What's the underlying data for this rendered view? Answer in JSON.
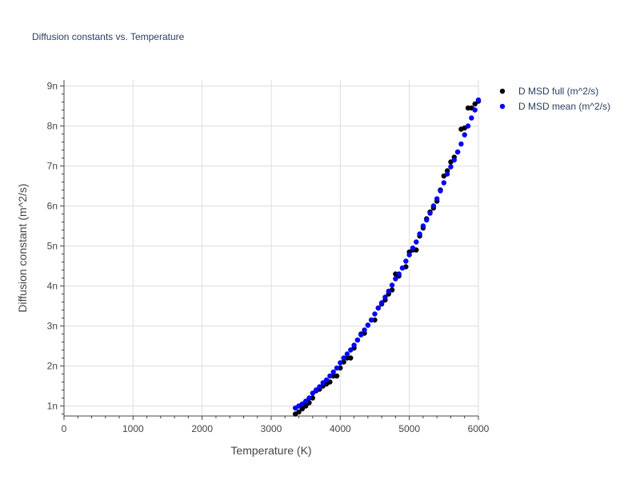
{
  "chart_data": {
    "type": "scatter",
    "title": "Diffusion constants vs. Temperature",
    "xlabel": "Temperature (K)",
    "ylabel": "Diffusion constant (m^2/s)",
    "xlim": [
      0,
      6000
    ],
    "ylim": [
      7.5e-10,
      9.15e-09
    ],
    "x_ticks": [
      0,
      1000,
      2000,
      3000,
      4000,
      5000,
      6000
    ],
    "x_tick_labels": [
      "0",
      "1000",
      "2000",
      "3000",
      "4000",
      "5000",
      "6000"
    ],
    "y_ticks": [
      1e-09,
      2e-09,
      3e-09,
      4e-09,
      5e-09,
      6e-09,
      7e-09,
      8e-09,
      9e-09
    ],
    "y_tick_labels": [
      "1n",
      "2n",
      "3n",
      "4n",
      "5n",
      "6n",
      "7n",
      "8n",
      "9n"
    ],
    "grid": true,
    "legend_position": "top-right",
    "series": [
      {
        "name": "D MSD full (m^2/s)",
        "color": "#000000",
        "x": [
          3350,
          3400,
          3450,
          3500,
          3550,
          3600,
          3650,
          3700,
          3750,
          3800,
          3850,
          3900,
          3950,
          4000,
          4050,
          4100,
          4150,
          4200,
          4250,
          4300,
          4350,
          4400,
          4450,
          4500,
          4550,
          4600,
          4650,
          4700,
          4750,
          4800,
          4850,
          4900,
          4950,
          5000,
          5050,
          5100,
          5150,
          5200,
          5250,
          5300,
          5350,
          5400,
          5450,
          5500,
          5550,
          5600,
          5650,
          5700,
          5750,
          5800,
          5850,
          5900,
          5950,
          6000
        ],
        "y": [
          8e-10,
          8.5e-10,
          9.3e-10,
          1e-09,
          1.08e-09,
          1.2e-09,
          1.38e-09,
          1.42e-09,
          1.5e-09,
          1.55e-09,
          1.6e-09,
          1.75e-09,
          1.75e-09,
          1.95e-09,
          2.1e-09,
          2.2e-09,
          2.2e-09,
          2.45e-09,
          2.65e-09,
          2.8e-09,
          2.82e-09,
          3.02e-09,
          3.15e-09,
          3.15e-09,
          3.45e-09,
          3.55e-09,
          3.65e-09,
          3.8e-09,
          3.9e-09,
          4.3e-09,
          4.25e-09,
          4.45e-09,
          4.48e-09,
          4.85e-09,
          4.9e-09,
          4.9e-09,
          5.25e-09,
          5.45e-09,
          5.68e-09,
          5.85e-09,
          5.95e-09,
          6.12e-09,
          6.4e-09,
          6.75e-09,
          6.88e-09,
          7.1e-09,
          7.22e-09,
          7.35e-09,
          7.92e-09,
          7.95e-09,
          8.45e-09,
          8.45e-09,
          8.55e-09,
          8.62e-09
        ]
      },
      {
        "name": "D MSD mean (m^2/s)",
        "color": "#0000ff",
        "x": [
          3350,
          3400,
          3450,
          3500,
          3550,
          3600,
          3650,
          3700,
          3750,
          3800,
          3850,
          3900,
          3950,
          4000,
          4050,
          4100,
          4150,
          4200,
          4250,
          4300,
          4350,
          4400,
          4450,
          4500,
          4550,
          4600,
          4650,
          4700,
          4750,
          4800,
          4850,
          4900,
          4950,
          5000,
          5050,
          5100,
          5150,
          5200,
          5250,
          5300,
          5350,
          5400,
          5450,
          5500,
          5550,
          5600,
          5650,
          5700,
          5750,
          5800,
          5850,
          5900,
          5950,
          6000
        ],
        "y": [
          9.5e-10,
          1e-09,
          1.05e-09,
          1.12e-09,
          1.2e-09,
          1.32e-09,
          1.4e-09,
          1.48e-09,
          1.58e-09,
          1.65e-09,
          1.75e-09,
          1.85e-09,
          1.95e-09,
          2.08e-09,
          2.2e-09,
          2.3e-09,
          2.4e-09,
          2.52e-09,
          2.65e-09,
          2.78e-09,
          2.9e-09,
          3.02e-09,
          3.15e-09,
          3.3e-09,
          3.45e-09,
          3.58e-09,
          3.72e-09,
          3.87e-09,
          4.02e-09,
          4.18e-09,
          4.3e-09,
          4.45e-09,
          4.62e-09,
          4.78e-09,
          4.95e-09,
          5.1e-09,
          5.3e-09,
          5.5e-09,
          5.65e-09,
          5.82e-09,
          6e-09,
          6.18e-09,
          6.38e-09,
          6.58e-09,
          6.8e-09,
          6.98e-09,
          7.15e-09,
          7.35e-09,
          7.55e-09,
          7.78e-09,
          8e-09,
          8.2e-09,
          8.4e-09,
          8.65e-09
        ]
      }
    ]
  }
}
